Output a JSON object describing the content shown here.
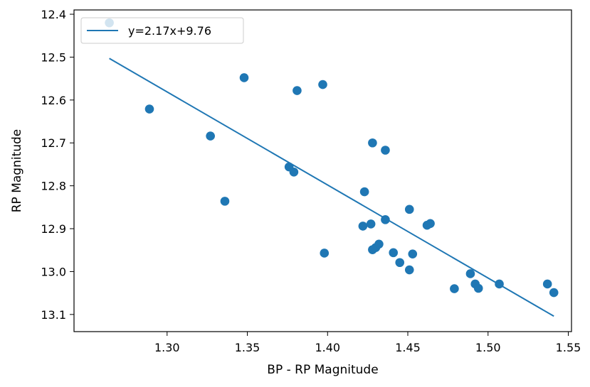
{
  "chart_data": {
    "type": "scatter",
    "title": "",
    "xlabel": "BP - RP Magnitude",
    "ylabel": "RP Magnitude",
    "xlim": [
      1.242,
      1.552
    ],
    "ylim": [
      12.39,
      13.14
    ],
    "y_inverted": true,
    "grid": false,
    "legend_position": "top-left",
    "xticks": [
      1.3,
      1.35,
      1.4,
      1.45,
      1.5,
      1.55
    ],
    "xtick_labels": [
      "1.30",
      "1.35",
      "1.40",
      "1.45",
      "1.50",
      "1.55"
    ],
    "yticks": [
      12.4,
      12.5,
      12.6,
      12.7,
      12.8,
      12.9,
      13.0,
      13.1
    ],
    "ytick_labels": [
      "12.4",
      "12.5",
      "12.6",
      "12.7",
      "12.8",
      "12.9",
      "13.0",
      "13.1"
    ],
    "color": "#1f77b4",
    "points": [
      {
        "x": 1.264,
        "y": 12.42
      },
      {
        "x": 1.289,
        "y": 12.621
      },
      {
        "x": 1.327,
        "y": 12.684
      },
      {
        "x": 1.336,
        "y": 12.836
      },
      {
        "x": 1.348,
        "y": 12.548
      },
      {
        "x": 1.376,
        "y": 12.756
      },
      {
        "x": 1.379,
        "y": 12.768
      },
      {
        "x": 1.381,
        "y": 12.578
      },
      {
        "x": 1.397,
        "y": 12.564
      },
      {
        "x": 1.398,
        "y": 12.957
      },
      {
        "x": 1.422,
        "y": 12.894
      },
      {
        "x": 1.423,
        "y": 12.814
      },
      {
        "x": 1.427,
        "y": 12.889
      },
      {
        "x": 1.428,
        "y": 12.949
      },
      {
        "x": 1.428,
        "y": 12.7
      },
      {
        "x": 1.43,
        "y": 12.944
      },
      {
        "x": 1.432,
        "y": 12.936
      },
      {
        "x": 1.436,
        "y": 12.879
      },
      {
        "x": 1.436,
        "y": 12.717
      },
      {
        "x": 1.441,
        "y": 12.956
      },
      {
        "x": 1.445,
        "y": 12.979
      },
      {
        "x": 1.451,
        "y": 12.855
      },
      {
        "x": 1.451,
        "y": 12.996
      },
      {
        "x": 1.453,
        "y": 12.959
      },
      {
        "x": 1.462,
        "y": 12.892
      },
      {
        "x": 1.464,
        "y": 12.888
      },
      {
        "x": 1.479,
        "y": 13.04
      },
      {
        "x": 1.489,
        "y": 13.005
      },
      {
        "x": 1.492,
        "y": 13.029
      },
      {
        "x": 1.494,
        "y": 13.039
      },
      {
        "x": 1.507,
        "y": 13.029
      },
      {
        "x": 1.537,
        "y": 13.029
      },
      {
        "x": 1.541,
        "y": 13.049
      }
    ],
    "series": [
      {
        "name": "y=2.17x+9.76",
        "type": "line",
        "x": [
          1.264,
          1.541
        ],
        "y": [
          12.503,
          13.104
        ]
      }
    ]
  }
}
